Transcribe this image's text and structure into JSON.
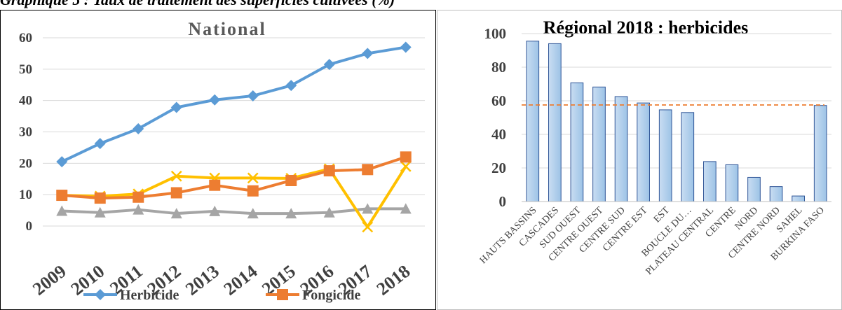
{
  "caption": "Graphique 5 : Taux de traitement des superficies cultivées (%)",
  "chart_data": [
    {
      "type": "line",
      "title": "National",
      "xlabel": "",
      "ylabel": "",
      "categories": [
        "2009",
        "2010",
        "2011",
        "2012",
        "2013",
        "2014",
        "2015",
        "2016",
        "2017",
        "2018"
      ],
      "ylim": [
        0,
        60
      ],
      "yticks": [
        "0",
        "10",
        "20",
        "30",
        "40",
        "50",
        "60"
      ],
      "grid": true,
      "legend_position": "bottom",
      "series": [
        {
          "name": "Herbicide",
          "color": "#5B9BD5",
          "marker": "diamond",
          "values": [
            20.5,
            26.3,
            31.0,
            37.8,
            40.2,
            41.5,
            44.8,
            51.5,
            55.0,
            57.0
          ]
        },
        {
          "name": "Fongicide",
          "color": "#ED7D31",
          "marker": "square",
          "values": [
            9.8,
            8.9,
            9.2,
            10.6,
            13.0,
            11.2,
            14.5,
            17.6,
            18.0,
            22.0
          ]
        },
        {
          "name": "",
          "color": "#FFC000",
          "marker": "x",
          "values": [
            9.8,
            9.5,
            10.2,
            15.9,
            15.3,
            15.3,
            15.2,
            18.2,
            -0.3,
            19.0
          ]
        },
        {
          "name": "",
          "color": "#A5A5A5",
          "marker": "triangle",
          "values": [
            4.8,
            4.3,
            5.2,
            4.0,
            4.7,
            4.0,
            4.0,
            4.3,
            5.5,
            5.5
          ]
        }
      ]
    },
    {
      "type": "bar",
      "title": "Régional 2018 : herbicides",
      "xlabel": "",
      "ylabel": "",
      "categories": [
        "HAUTS BASSINS",
        "CASCADES",
        "SUD OUEST",
        "CENTRE OUEST",
        "CENTRE SUD",
        "CENTRE EST",
        "EST",
        "BOUCLE DU…",
        "PLATEAU CENTRAL",
        "CENTRE",
        "NORD",
        "CENTRE NORD",
        "SAHEL",
        "BURKINA FASO"
      ],
      "values": [
        95.5,
        94.0,
        70.7,
        68.2,
        62.5,
        58.7,
        54.6,
        53.0,
        23.8,
        21.9,
        14.4,
        8.9,
        3.3,
        57.2
      ],
      "ylim": [
        0,
        100
      ],
      "yticks": [
        "0",
        "20",
        "40",
        "60",
        "80",
        "100"
      ],
      "bar_color": "#9DC3E6",
      "reference_line": {
        "value": 57.5,
        "color": "#ED7D31",
        "style": "dashed"
      },
      "grid": true
    }
  ]
}
